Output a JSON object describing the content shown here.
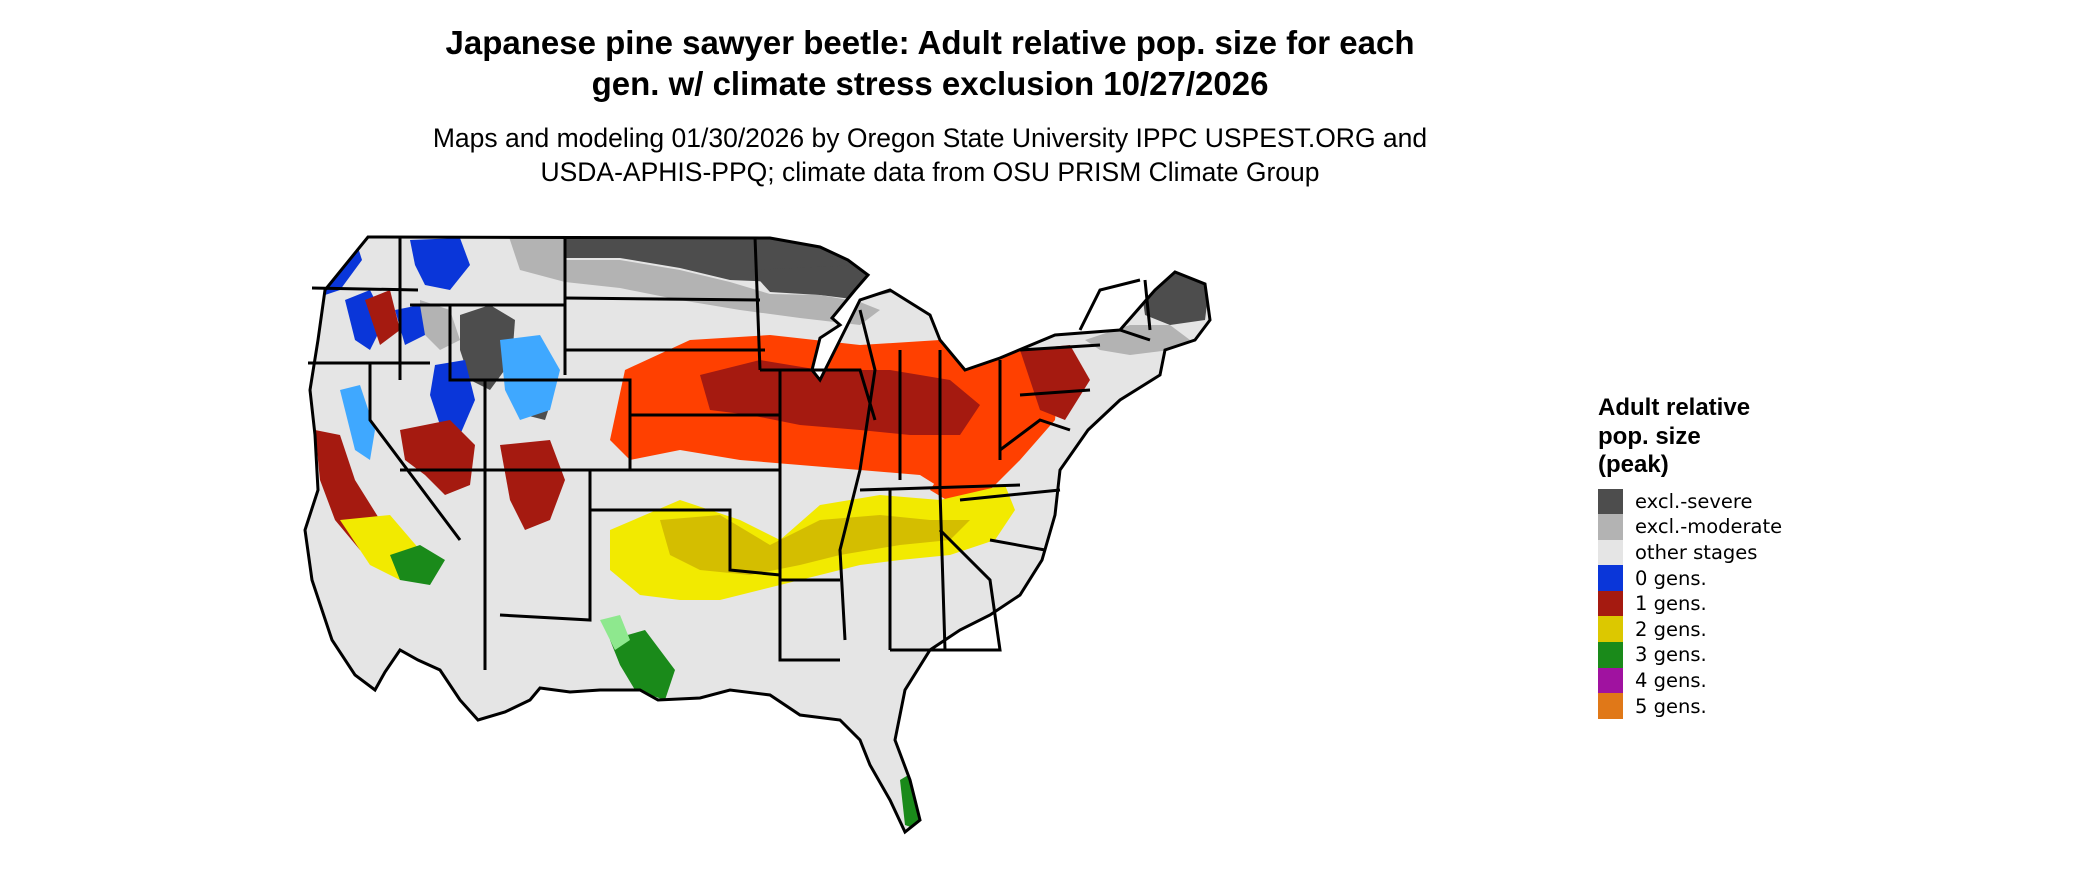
{
  "title_line1": "Japanese pine sawyer beetle: Adult relative pop. size for each",
  "title_line2": "gen. w/ climate stress exclusion 10/27/2026",
  "subtitle_line1": "Maps and modeling 01/30/2026 by Oregon State University IPPC USPEST.ORG and",
  "subtitle_line2": "USDA-APHIS-PPQ; climate data from OSU PRISM Climate Group",
  "legend": {
    "title_line1": "Adult relative",
    "title_line2": "pop. size",
    "title_line3": "(peak)",
    "items": [
      {
        "label": "excl.-severe",
        "color": "#4d4d4d"
      },
      {
        "label": "excl.-moderate",
        "color": "#b3b3b3"
      },
      {
        "label": "other stages",
        "color": "#e5e5e5"
      },
      {
        "label": "0 gens.",
        "color": "#0a36d9"
      },
      {
        "label": "1 gens.",
        "color": "#a51a10"
      },
      {
        "label": "2 gens.",
        "color": "#dcc800"
      },
      {
        "label": "3 gens.",
        "color": "#1a8a1a"
      },
      {
        "label": "4 gens.",
        "color": "#a012a0"
      },
      {
        "label": "5 gens.",
        "color": "#e07818"
      }
    ]
  },
  "map_colors": {
    "base": "#e5e5e5",
    "severe": "#4d4d4d",
    "moderate": "#b3b3b3",
    "blue": "#0a36d9",
    "light_blue": "#3fa8ff",
    "red_dark": "#a51a10",
    "red_orange": "#ff4000",
    "yellow": "#f2ea00",
    "yellow_dark": "#d4be00",
    "green": "#1a8a1a",
    "light_green": "#8ee88e",
    "border": "#000000"
  }
}
